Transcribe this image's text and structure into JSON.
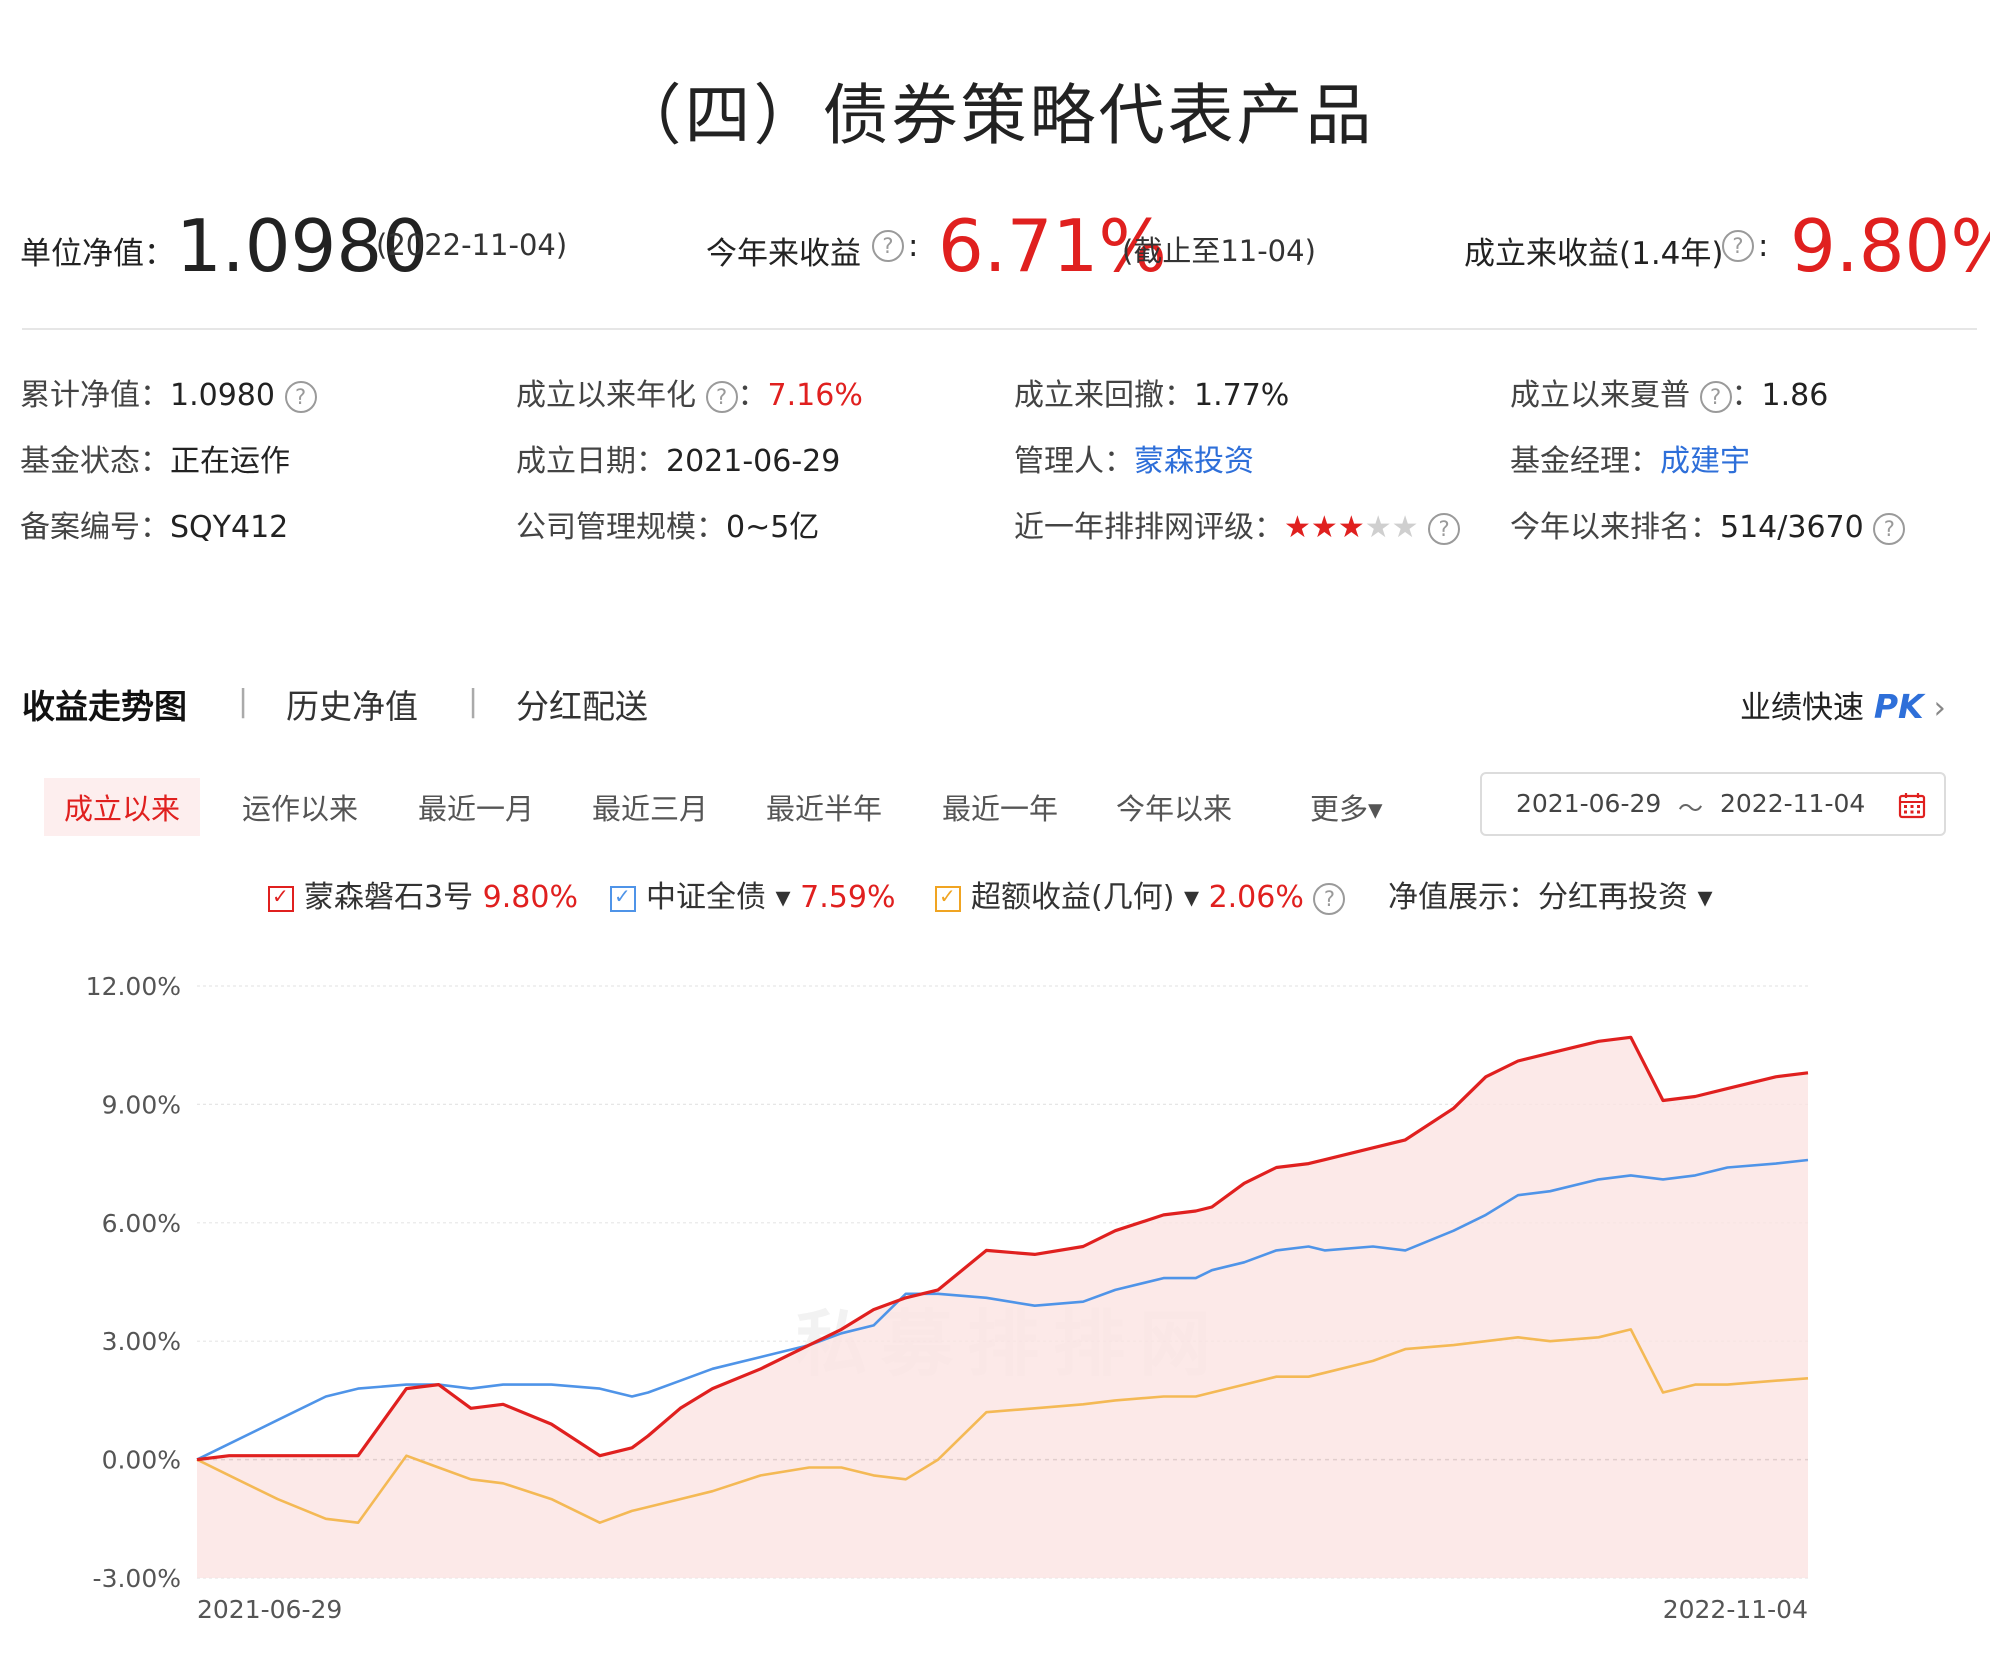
{
  "title": "（四）债券策略代表产品",
  "summary": {
    "nav_label": "单位净值：",
    "nav_value": "1.0980",
    "nav_date": "(2022-11-04)",
    "ytd_label": "今年来收益",
    "ytd_value": "6.71%",
    "ytd_note": "(截止至11-04)",
    "since_label": "成立来收益(1.4年)",
    "since_value": "9.80%"
  },
  "info": {
    "cum_nav_label": "累计净值：",
    "cum_nav_value": "1.0980",
    "annual_label": "成立以来年化",
    "annual_value": "7.16%",
    "drawdown_label": "成立来回撤：",
    "drawdown_value": "1.77%",
    "sharpe_label": "成立以来夏普",
    "sharpe_value": "1.86",
    "status_label": "基金状态：",
    "status_value": "正在运作",
    "date_label": "成立日期：",
    "date_value": "2021-06-29",
    "manager_label": "管理人：",
    "manager_value": "蒙森投资",
    "fm_label": "基金经理：",
    "fm_value": "成建宇",
    "record_label": "备案编号：",
    "record_value": "SQY412",
    "scale_label": "公司管理规模：",
    "scale_value": "0~5亿",
    "rating_label": "近一年排排网评级：",
    "rating_stars": 3,
    "rank_label": "今年以来排名：",
    "rank_value": "514/3670"
  },
  "tabs": [
    "收益走势图",
    "历史净值",
    "分红配送"
  ],
  "tab_separator": "|",
  "pk": {
    "label": "业绩快速",
    "accent": "PK",
    "arrow": "›"
  },
  "periods": [
    "成立以来",
    "运作以来",
    "最近一月",
    "最近三月",
    "最近半年",
    "最近一年",
    "今年以来",
    "更多▾"
  ],
  "date_range": {
    "start": "2021-06-29",
    "tilde": "～",
    "end": "2022-11-04"
  },
  "legend": {
    "fund_name": "蒙森磐石3号",
    "fund_value": "9.80%",
    "bench_name": "中证全债 ▾",
    "bench_value": "7.59%",
    "excess_name": "超额收益(几何) ▾",
    "excess_value": "2.06%",
    "display_label": "净值展示：",
    "display_value": "分红再投资 ▾"
  },
  "watermark": "私募排排网",
  "help_glyph": "?",
  "colors": {
    "fund": "#e0201f",
    "benchmark": "#4f94e8",
    "excess": "#f4b955",
    "fill": "#fbe4e2"
  },
  "chart_data": {
    "type": "line",
    "ylim": [
      -3,
      12
    ],
    "yticks": [
      "12.00%",
      "9.00%",
      "6.00%",
      "3.00%",
      "0.00%",
      "-3.00%"
    ],
    "ytick_values": [
      12,
      9,
      6,
      3,
      0,
      -3
    ],
    "x_tick_labels": [
      "2021-06-29",
      "2022-11-04"
    ],
    "x": [
      0,
      2,
      5,
      8,
      10,
      13,
      15,
      17,
      19,
      22,
      25,
      27,
      28,
      30,
      32,
      35,
      38,
      40,
      42,
      44,
      46,
      49,
      52,
      55,
      57,
      60,
      62,
      63,
      65,
      67,
      69,
      70,
      73,
      75,
      78,
      80,
      82,
      84,
      87,
      89,
      91,
      93,
      95,
      98,
      100
    ],
    "series": [
      {
        "name": "蒙森磐石3号",
        "values": [
          0,
          0.1,
          0.1,
          0.1,
          0.1,
          1.8,
          1.9,
          1.3,
          1.4,
          0.9,
          0.1,
          0.3,
          0.6,
          1.3,
          1.8,
          2.3,
          2.9,
          3.3,
          3.8,
          4.1,
          4.3,
          5.3,
          5.2,
          5.4,
          5.8,
          6.2,
          6.3,
          6.4,
          7.0,
          7.4,
          7.5,
          7.6,
          7.9,
          8.1,
          8.9,
          9.7,
          10.1,
          10.3,
          10.6,
          10.7,
          9.1,
          9.2,
          9.4,
          9.7,
          9.8
        ]
      },
      {
        "name": "中证全债",
        "values": [
          0,
          0.4,
          1.0,
          1.6,
          1.8,
          1.9,
          1.9,
          1.8,
          1.9,
          1.9,
          1.8,
          1.6,
          1.7,
          2.0,
          2.3,
          2.6,
          2.9,
          3.2,
          3.4,
          4.2,
          4.2,
          4.1,
          3.9,
          4.0,
          4.3,
          4.6,
          4.6,
          4.8,
          5.0,
          5.3,
          5.4,
          5.3,
          5.4,
          5.3,
          5.8,
          6.2,
          6.7,
          6.8,
          7.1,
          7.2,
          7.1,
          7.2,
          7.4,
          7.5,
          7.59
        ]
      },
      {
        "name": "超额收益(几何)",
        "values": [
          0,
          -0.4,
          -1.0,
          -1.5,
          -1.6,
          0.1,
          -0.2,
          -0.5,
          -0.6,
          -1.0,
          -1.6,
          -1.3,
          -1.2,
          -1.0,
          -0.8,
          -0.4,
          -0.2,
          -0.2,
          -0.4,
          -0.5,
          0.0,
          1.2,
          1.3,
          1.4,
          1.5,
          1.6,
          1.6,
          1.7,
          1.9,
          2.1,
          2.1,
          2.2,
          2.5,
          2.8,
          2.9,
          3.0,
          3.1,
          3.0,
          3.1,
          3.3,
          1.7,
          1.9,
          1.9,
          2.0,
          2.06
        ]
      }
    ]
  }
}
